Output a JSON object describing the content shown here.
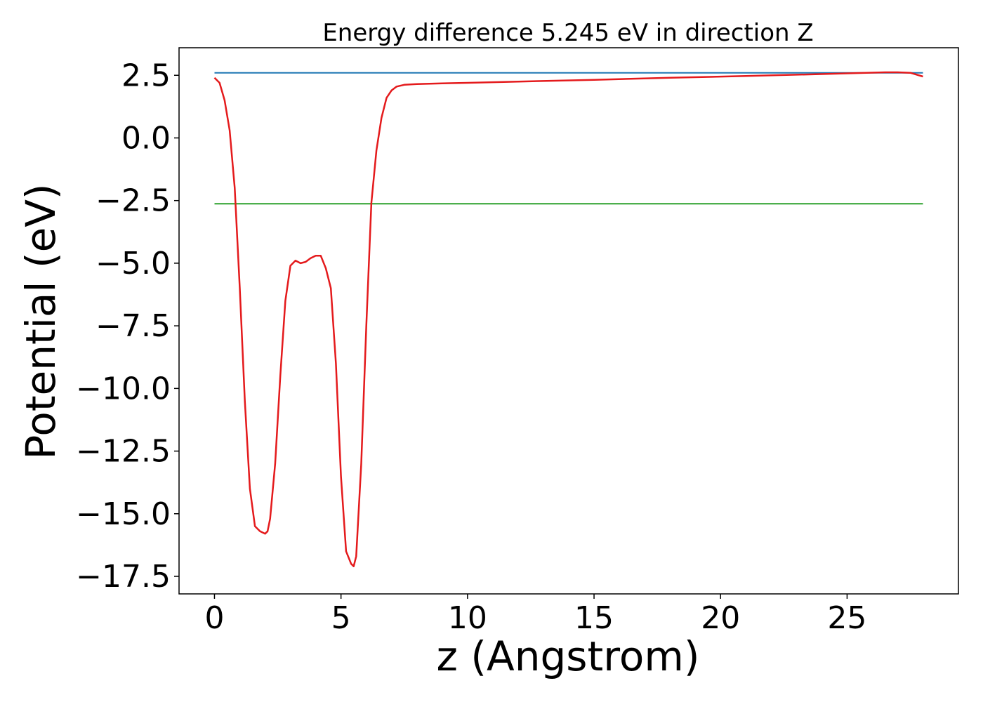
{
  "chart_data": {
    "type": "line",
    "title": "Energy difference 5.245 eV in direction Z",
    "xlabel": "z (Angstrom)",
    "ylabel": "Potential (eV)",
    "xlim": [
      -1.4,
      29.4
    ],
    "ylim": [
      -18.2,
      3.6
    ],
    "xticks": [
      0,
      5,
      10,
      15,
      20,
      25
    ],
    "xtick_labels": [
      "0",
      "5",
      "10",
      "15",
      "20",
      "25"
    ],
    "yticks": [
      2.5,
      0.0,
      -2.5,
      -5.0,
      -7.5,
      -10.0,
      -12.5,
      -15.0,
      -17.5
    ],
    "ytick_labels": [
      "2.5",
      "0.0",
      "−2.5",
      "−5.0",
      "−7.5",
      "−10.0",
      "−12.5",
      "−15.0",
      "−17.5"
    ],
    "grid": false,
    "series": [
      {
        "color": "#1f77b4",
        "x": [
          0,
          28
        ],
        "y": [
          2.6,
          2.6
        ]
      },
      {
        "color": "#2ca02c",
        "x": [
          0,
          28
        ],
        "y": [
          -2.63,
          -2.63
        ]
      },
      {
        "color": "#e41a1c",
        "x": [
          0.0,
          0.2,
          0.4,
          0.6,
          0.8,
          1.0,
          1.2,
          1.4,
          1.6,
          1.8,
          2.0,
          2.1,
          2.2,
          2.4,
          2.6,
          2.8,
          3.0,
          3.2,
          3.4,
          3.6,
          3.8,
          4.0,
          4.2,
          4.4,
          4.6,
          4.8,
          5.0,
          5.2,
          5.4,
          5.5,
          5.6,
          5.8,
          6.0,
          6.2,
          6.4,
          6.6,
          6.8,
          7.0,
          7.2,
          7.5,
          8.0,
          9.0,
          10.0,
          12.0,
          15.0,
          18.0,
          21.0,
          24.0,
          25.5,
          26.5,
          27.0,
          27.5,
          28.0
        ],
        "y": [
          2.4,
          2.2,
          1.5,
          0.3,
          -2.0,
          -6.0,
          -10.5,
          -14.0,
          -15.5,
          -15.7,
          -15.8,
          -15.7,
          -15.2,
          -13.0,
          -9.5,
          -6.5,
          -5.1,
          -4.9,
          -5.0,
          -4.95,
          -4.8,
          -4.7,
          -4.7,
          -5.2,
          -6.0,
          -9.0,
          -13.5,
          -16.5,
          -17.0,
          -17.1,
          -16.7,
          -13.0,
          -7.5,
          -2.6,
          -0.5,
          0.8,
          1.6,
          1.9,
          2.05,
          2.12,
          2.15,
          2.18,
          2.2,
          2.25,
          2.32,
          2.4,
          2.47,
          2.55,
          2.59,
          2.62,
          2.62,
          2.6,
          2.45
        ]
      }
    ]
  }
}
